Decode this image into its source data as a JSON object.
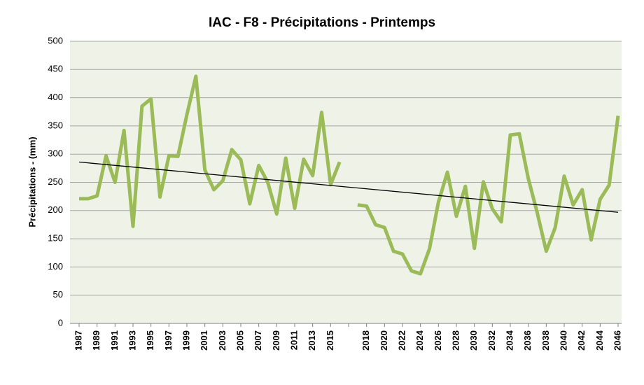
{
  "chart_data": {
    "type": "line",
    "title": "IAC - F8 - Précipitations - Printemps",
    "y_label": "Précipitations - (mm)",
    "categories": [
      "1987",
      null,
      "1989",
      null,
      "1991",
      null,
      "1993",
      null,
      "1995",
      null,
      "1997",
      null,
      "1999",
      null,
      "2001",
      null,
      "2003",
      null,
      "2005",
      null,
      "2007",
      null,
      "2009",
      null,
      "2011",
      null,
      "2013",
      null,
      "2015",
      null,
      null,
      null,
      "2018",
      null,
      "2020",
      null,
      "2022",
      null,
      "2024",
      null,
      "2026",
      null,
      "2028",
      null,
      "2030",
      null,
      "2032",
      null,
      "2034",
      null,
      "2036",
      null,
      "2038",
      null,
      "2040",
      null,
      "2042",
      null,
      "2044",
      null,
      "2046"
    ],
    "series": [
      {
        "color": "#9bbb59",
        "values": [
          221,
          221,
          226,
          297,
          250,
          342,
          172,
          385,
          398,
          224,
          297,
          296,
          370,
          438,
          272,
          237,
          253,
          308,
          290,
          212,
          280,
          250,
          194,
          293,
          204,
          291,
          262,
          374,
          246,
          286,
          null,
          210,
          208,
          175,
          170,
          128,
          123,
          93,
          88,
          132,
          215,
          268,
          190,
          243,
          133,
          251,
          203,
          180,
          334,
          336,
          257,
          196,
          128,
          170,
          261,
          210,
          237,
          148,
          220,
          245,
          368
        ]
      }
    ],
    "trend": {
      "color": "#000000",
      "values": [
        286,
        197
      ]
    },
    "ylim": [
      0,
      500
    ],
    "yticks": [
      0,
      50,
      100,
      150,
      200,
      250,
      300,
      350,
      400,
      450,
      500
    ],
    "grid": true
  }
}
